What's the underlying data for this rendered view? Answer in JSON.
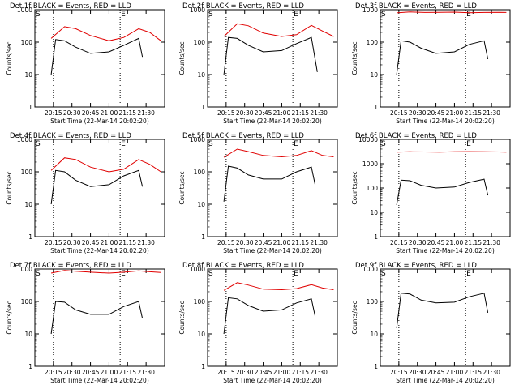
{
  "chart_data": [
    {
      "type": "line",
      "title": "Det 1f BLACK = Events, RED = LLD",
      "xlabel": "Start Time (22-Mar-14 20:02:20)",
      "ylabel": "Counts/sec",
      "yscale": "log",
      "ylim": [
        1,
        1000
      ],
      "x_ticks": [
        "20:15",
        "20:30",
        "20:45",
        "21:00",
        "21:15",
        "21:30"
      ],
      "y_ticks": [
        "1",
        "10",
        "100",
        "1000"
      ],
      "markers": {
        "start": "S",
        "end": "E"
      },
      "series": [
        {
          "color": "#000000",
          "x": [
            20.22,
            20.28,
            20.4,
            20.55,
            20.75,
            21.0,
            21.2,
            21.4,
            21.45
          ],
          "y": [
            10,
            120,
            110,
            70,
            45,
            50,
            80,
            130,
            35
          ]
        },
        {
          "color": "#e00000",
          "x": [
            20.22,
            20.4,
            20.55,
            20.75,
            21.0,
            21.2,
            21.4,
            21.55,
            21.7
          ],
          "y": [
            130,
            300,
            260,
            160,
            110,
            140,
            260,
            200,
            110
          ]
        }
      ]
    },
    {
      "type": "line",
      "title": "Det 2f BLACK = Events, RED = LLD",
      "xlabel": "Start Time (22-Mar-14 20:02:20)",
      "ylabel": "Counts/sec",
      "yscale": "log",
      "ylim": [
        1,
        1000
      ],
      "x_ticks": [
        "20:15",
        "20:30",
        "20:45",
        "21:00",
        "21:15",
        "21:30"
      ],
      "y_ticks": [
        "1",
        "10",
        "100",
        "1000"
      ],
      "markers": {
        "start": "S",
        "end": "E"
      },
      "series": [
        {
          "color": "#000000",
          "x": [
            20.22,
            20.28,
            20.4,
            20.55,
            20.75,
            21.0,
            21.2,
            21.4,
            21.48
          ],
          "y": [
            10,
            140,
            130,
            80,
            50,
            55,
            90,
            140,
            12
          ]
        },
        {
          "color": "#e00000",
          "x": [
            20.22,
            20.4,
            20.55,
            20.75,
            21.0,
            21.2,
            21.4,
            21.55,
            21.7
          ],
          "y": [
            150,
            370,
            320,
            190,
            150,
            170,
            330,
            220,
            150
          ]
        }
      ]
    },
    {
      "type": "line",
      "title": "Det 3f BLACK = Events, RED = LLD",
      "xlabel": "Start Time (22-Mar-14 20:02:20)",
      "ylabel": "Counts/sec",
      "yscale": "log",
      "ylim": [
        1,
        1000
      ],
      "x_ticks": [
        "20:15",
        "20:30",
        "20:45",
        "21:00",
        "21:15",
        "21:30"
      ],
      "y_ticks": [
        "1",
        "10",
        "100",
        "1000"
      ],
      "markers": {
        "start": "S",
        "end": "E"
      },
      "series": [
        {
          "color": "#000000",
          "x": [
            20.22,
            20.28,
            20.4,
            20.55,
            20.75,
            21.0,
            21.2,
            21.4,
            21.45
          ],
          "y": [
            10,
            110,
            100,
            65,
            45,
            50,
            85,
            110,
            30
          ]
        },
        {
          "color": "#e00000",
          "x": [
            20.22,
            20.4,
            20.6,
            20.8,
            21.0,
            21.2,
            21.4,
            21.6,
            21.7
          ],
          "y": [
            800,
            850,
            820,
            830,
            840,
            810,
            820,
            830,
            820
          ]
        }
      ]
    },
    {
      "type": "line",
      "title": "Det 4f BLACK = Events, RED = LLD",
      "xlabel": "Start Time (22-Mar-14 20:02:20)",
      "ylabel": "Counts/sec",
      "yscale": "log",
      "ylim": [
        1,
        1000
      ],
      "x_ticks": [
        "20:15",
        "20:30",
        "20:45",
        "21:00",
        "21:15",
        "21:30"
      ],
      "y_ticks": [
        "1",
        "10",
        "100",
        "1000"
      ],
      "markers": {
        "start": "S",
        "end": "E"
      },
      "series": [
        {
          "color": "#000000",
          "x": [
            20.22,
            20.28,
            20.4,
            20.55,
            20.75,
            21.0,
            21.2,
            21.4,
            21.45
          ],
          "y": [
            10,
            110,
            100,
            55,
            35,
            40,
            75,
            110,
            35
          ]
        },
        {
          "color": "#e00000",
          "x": [
            20.22,
            20.4,
            20.55,
            20.75,
            21.0,
            21.2,
            21.4,
            21.55,
            21.7
          ],
          "y": [
            110,
            270,
            240,
            140,
            100,
            120,
            240,
            170,
            100
          ]
        }
      ]
    },
    {
      "type": "line",
      "title": "Det 5f BLACK = Events, RED = LLD",
      "xlabel": "Start Time (22-Mar-14 20:02:20)",
      "ylabel": "Counts/sec",
      "yscale": "log",
      "ylim": [
        1,
        1000
      ],
      "x_ticks": [
        "20:15",
        "20:30",
        "20:45",
        "21:00",
        "21:15",
        "21:30"
      ],
      "y_ticks": [
        "1",
        "10",
        "100",
        "1000"
      ],
      "markers": {
        "start": "S",
        "end": "E"
      },
      "series": [
        {
          "color": "#000000",
          "x": [
            20.22,
            20.28,
            20.4,
            20.55,
            20.75,
            21.0,
            21.2,
            21.4,
            21.45
          ],
          "y": [
            12,
            150,
            130,
            80,
            60,
            60,
            100,
            140,
            40
          ]
        },
        {
          "color": "#e00000",
          "x": [
            20.22,
            20.4,
            20.55,
            20.75,
            21.0,
            21.2,
            21.4,
            21.55,
            21.7
          ],
          "y": [
            280,
            500,
            420,
            320,
            290,
            320,
            450,
            320,
            290
          ]
        }
      ]
    },
    {
      "type": "line",
      "title": "Det 6f BLACK = Events, RED = LLD",
      "xlabel": "Start Time (22-Mar-14 20:02:20)",
      "ylabel": "Counts/sec",
      "yscale": "log",
      "ylim": [
        1,
        10000
      ],
      "x_ticks": [
        "20:15",
        "20:30",
        "20:45",
        "21:00",
        "21:15",
        "21:30"
      ],
      "y_ticks": [
        "1",
        "10",
        "100",
        "1000",
        "10000"
      ],
      "markers": {
        "start": "S",
        "end": "E"
      },
      "series": [
        {
          "color": "#000000",
          "x": [
            20.22,
            20.28,
            20.4,
            20.55,
            20.75,
            21.0,
            21.2,
            21.4,
            21.45
          ],
          "y": [
            20,
            210,
            200,
            130,
            100,
            110,
            170,
            230,
            50
          ]
        },
        {
          "color": "#e00000",
          "x": [
            20.22,
            20.4,
            20.6,
            20.8,
            21.0,
            21.2,
            21.4,
            21.6,
            21.7
          ],
          "y": [
            3000,
            3100,
            3050,
            3000,
            3100,
            3150,
            3100,
            3050,
            3000
          ]
        }
      ]
    },
    {
      "type": "line",
      "title": "Det 7f BLACK = Events, RED = LLD",
      "xlabel": "Start Time (22-Mar-14 20:02:20)",
      "ylabel": "Counts/sec",
      "yscale": "log",
      "ylim": [
        1,
        1000
      ],
      "x_ticks": [
        "20:15",
        "20:30",
        "20:45",
        "21:00",
        "21:15",
        "21:30"
      ],
      "y_ticks": [
        "1",
        "10",
        "100",
        "1000"
      ],
      "markers": {
        "start": "S",
        "end": "E"
      },
      "series": [
        {
          "color": "#000000",
          "x": [
            20.22,
            20.28,
            20.4,
            20.55,
            20.75,
            21.0,
            21.2,
            21.4,
            21.45
          ],
          "y": [
            10,
            100,
            95,
            55,
            40,
            40,
            70,
            100,
            30
          ]
        },
        {
          "color": "#e00000",
          "x": [
            20.22,
            20.4,
            20.55,
            20.75,
            21.0,
            21.2,
            21.4,
            21.55,
            21.7
          ],
          "y": [
            750,
            900,
            850,
            800,
            750,
            800,
            880,
            820,
            780
          ]
        }
      ]
    },
    {
      "type": "line",
      "title": "Det 8f BLACK = Events, RED = LLD",
      "xlabel": "Start Time (22-Mar-14 20:02:20)",
      "ylabel": "Counts/sec",
      "yscale": "log",
      "ylim": [
        1,
        1000
      ],
      "x_ticks": [
        "20:15",
        "20:30",
        "20:45",
        "21:00",
        "21:15",
        "21:30"
      ],
      "y_ticks": [
        "1",
        "10",
        "100",
        "1000"
      ],
      "markers": {
        "start": "S",
        "end": "E"
      },
      "series": [
        {
          "color": "#000000",
          "x": [
            20.22,
            20.28,
            20.4,
            20.55,
            20.75,
            21.0,
            21.2,
            21.4,
            21.45
          ],
          "y": [
            10,
            130,
            120,
            75,
            50,
            55,
            90,
            120,
            35
          ]
        },
        {
          "color": "#e00000",
          "x": [
            20.22,
            20.4,
            20.55,
            20.75,
            21.0,
            21.2,
            21.4,
            21.55,
            21.7
          ],
          "y": [
            220,
            380,
            320,
            240,
            230,
            250,
            330,
            260,
            230
          ]
        }
      ]
    },
    {
      "type": "line",
      "title": "Det 9f BLACK = Events, RED = LLD",
      "xlabel": "Start Time (22-Mar-14 20:02:20)",
      "ylabel": "Counts/sec",
      "yscale": "log",
      "ylim": [
        1,
        1000
      ],
      "x_ticks": [
        "20:15",
        "20:30",
        "20:45",
        "21:00",
        "21:15",
        "21:30"
      ],
      "y_ticks": [
        "1",
        "10",
        "100",
        "1000"
      ],
      "markers": {
        "start": "S",
        "end": "E"
      },
      "series": [
        {
          "color": "#000000",
          "x": [
            20.22,
            20.28,
            20.4,
            20.55,
            20.75,
            21.0,
            21.2,
            21.4,
            21.45
          ],
          "y": [
            15,
            180,
            170,
            110,
            90,
            95,
            140,
            180,
            45
          ]
        }
      ]
    }
  ]
}
